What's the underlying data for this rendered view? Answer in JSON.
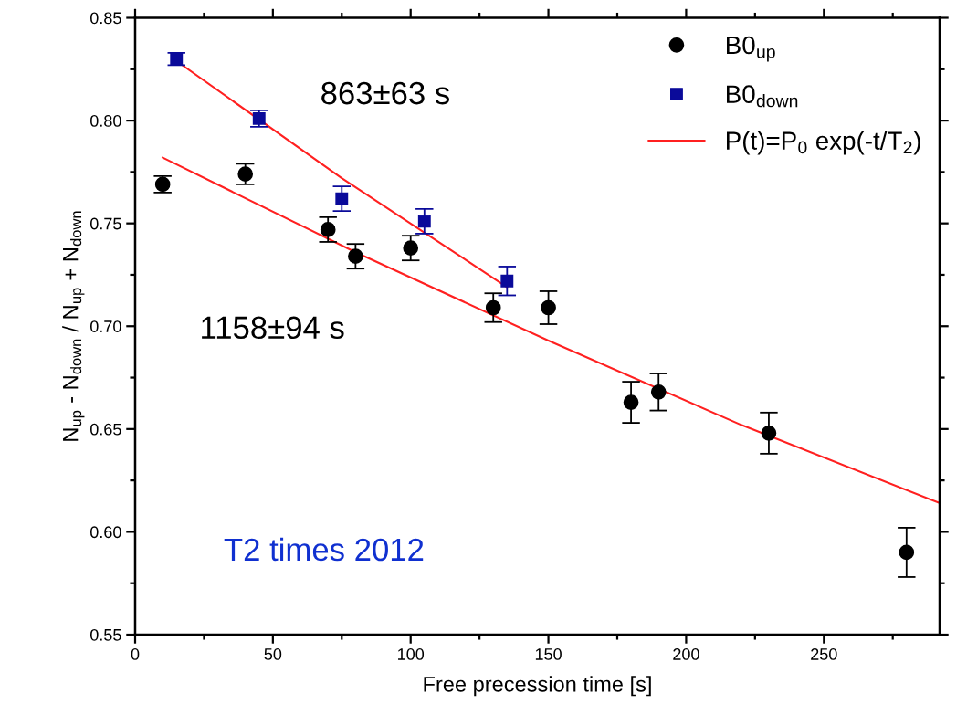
{
  "chart_data": {
    "type": "scatter",
    "xlabel": "Free precession time [s]",
    "ylabel": "N$_{up}$ - N$_{down}$ / N$_{up}$ + N$_{down}$",
    "xlim": [
      0,
      292
    ],
    "xticks": [
      0,
      {
        "value": 25,
        "label": null
      },
      50,
      {
        "value": 75,
        "label": null
      },
      100,
      {
        "value": 125,
        "label": null
      },
      150,
      {
        "value": 175,
        "label": null
      },
      200,
      {
        "value": 225,
        "label": null
      },
      250,
      {
        "value": 275,
        "label": null
      }
    ],
    "ylim": [
      0.55,
      0.85
    ],
    "yticks": [
      0.55,
      {
        "value": 0.575,
        "label": null
      },
      {
        "value": 0.6,
        "label": "0.60"
      },
      {
        "value": 0.625,
        "label": null
      },
      0.65,
      {
        "value": 0.675,
        "label": null
      },
      {
        "value": 0.7,
        "label": "0.70"
      },
      {
        "value": 0.725,
        "label": null
      },
      0.75,
      {
        "value": 0.775,
        "label": null
      },
      {
        "value": 0.8,
        "label": "0.80"
      },
      {
        "value": 0.825,
        "label": null
      },
      0.85
    ],
    "grid": false,
    "legend": "top right",
    "series": [
      {
        "name": "B0$_{up}$",
        "marker": "circle",
        "color": "#000000",
        "x": [
          10,
          40,
          70,
          80,
          100,
          130,
          150,
          180,
          190,
          230,
          280
        ],
        "values": [
          0.769,
          0.774,
          0.747,
          0.734,
          0.738,
          0.709,
          0.709,
          0.663,
          0.668,
          0.648,
          0.59
        ],
        "errors": [
          0.004,
          0.005,
          0.006,
          0.006,
          0.006,
          0.007,
          0.008,
          0.01,
          0.009,
          0.01,
          0.012
        ]
      },
      {
        "name": "B0$_{down}$",
        "marker": "square",
        "color": "#0a0a9a",
        "x": [
          15,
          45,
          75,
          105,
          135
        ],
        "values": [
          0.83,
          0.801,
          0.762,
          0.751,
          0.722
        ],
        "errors": [
          0.003,
          0.004,
          0.006,
          0.006,
          0.007
        ]
      },
      {
        "name": "P(t)=P$_{0}$ exp(-t/T$_{2}$)",
        "type": "line",
        "marker": "none",
        "line_style": "solid",
        "color": "#ff2020",
        "x": [
          15,
          75,
          135
        ],
        "values": [
          0.829,
          0.772,
          0.719
        ]
      },
      {
        "type": "line",
        "marker": "none",
        "line_style": "solid",
        "color": "#ff2020",
        "x": [
          10,
          80,
          150,
          220,
          292
        ],
        "values": [
          0.782,
          0.736,
          0.693,
          0.652,
          0.614
        ]
      }
    ],
    "annotations": [
      "863±63 s",
      "1158±94 s",
      "T2 times 2012"
    ]
  }
}
